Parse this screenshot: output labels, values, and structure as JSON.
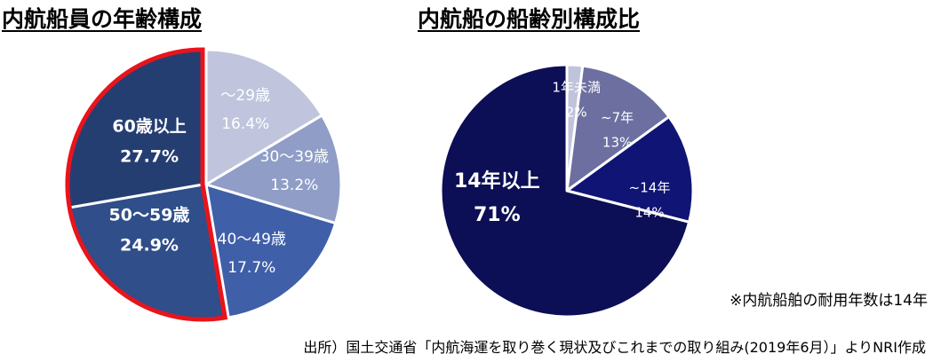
{
  "titles": {
    "left": "内航船員の年齢構成",
    "right": "内航船の船齢別構成比"
  },
  "chart_data": [
    {
      "type": "pie",
      "title": "内航船員の年齢構成",
      "slices": [
        {
          "label": "～29歳",
          "value": 16.4,
          "display": "16.4%",
          "color": "#c0c5dd",
          "text_color": "#ffffff",
          "bold": false
        },
        {
          "label": "30～39歳",
          "value": 13.2,
          "display": "13.2%",
          "color": "#8f9dc7",
          "text_color": "#ffffff",
          "bold": false
        },
        {
          "label": "40～49歳",
          "value": 17.7,
          "display": "17.7%",
          "color": "#3f5fa8",
          "text_color": "#ffffff",
          "bold": false
        },
        {
          "label": "50～59歳",
          "value": 24.9,
          "display": "24.9%",
          "color": "#2f4e8a",
          "text_color": "#ffffff",
          "bold": true
        },
        {
          "label": "60歳以上",
          "value": 27.7,
          "display": "27.7%",
          "color": "#253e72",
          "text_color": "#ffffff",
          "bold": true
        }
      ],
      "highlight": {
        "slices": [
          "50～59歳",
          "60歳以上"
        ],
        "color": "#e8141c"
      }
    },
    {
      "type": "pie",
      "title": "内航船の船齢別構成比",
      "slices": [
        {
          "label": "1年未満",
          "value": 2,
          "display": "2%",
          "color": "#c0c3dc",
          "text_color": "#ffffff",
          "bold": false
        },
        {
          "label": "~7年",
          "value": 13,
          "display": "13%",
          "color": "#6c6fa0",
          "text_color": "#ffffff",
          "bold": false
        },
        {
          "label": "~14年",
          "value": 14,
          "display": "14%",
          "color": "#101474",
          "text_color": "#ffffff",
          "bold": false
        },
        {
          "label": "14年以上",
          "value": 71,
          "display": "71%",
          "color": "#0c0f55",
          "text_color": "#ffffff",
          "bold": true
        }
      ]
    }
  ],
  "notes": {
    "service_life": "※内航船舶の耐用年数は14年",
    "source": "出所）国土交通省「内航海運を取り巻く現状及びこれまでの取り組み(2019年6月）」よりNRI作成"
  }
}
